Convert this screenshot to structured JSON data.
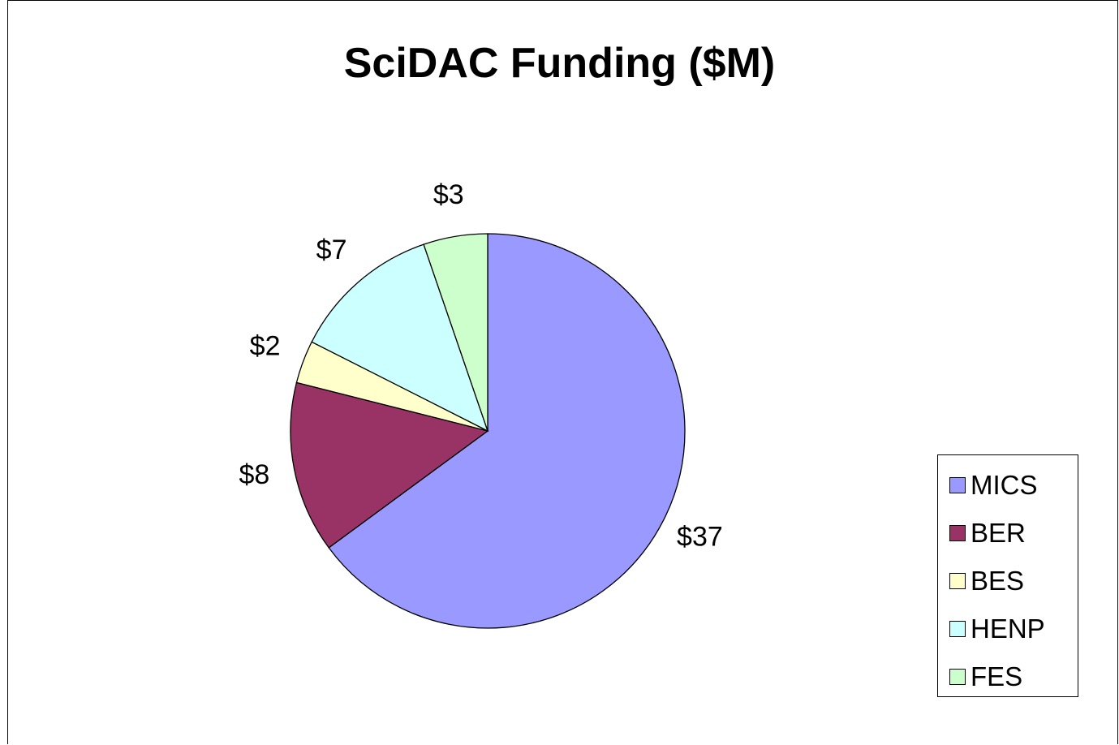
{
  "chart_data": {
    "type": "pie",
    "title": "SciDAC Funding ($M)",
    "categories": [
      "MICS",
      "BER",
      "BES",
      "HENP",
      "FES"
    ],
    "values": [
      37,
      8,
      2,
      7,
      3
    ],
    "data_labels": [
      "$37",
      "$8",
      "$2",
      "$7",
      "$3"
    ],
    "colors": [
      "#9999FF",
      "#993366",
      "#FFFFCC",
      "#CCFFFF",
      "#CCFFCC"
    ],
    "start_angle": "12 o'clock, clockwise",
    "legend_position": "right"
  }
}
